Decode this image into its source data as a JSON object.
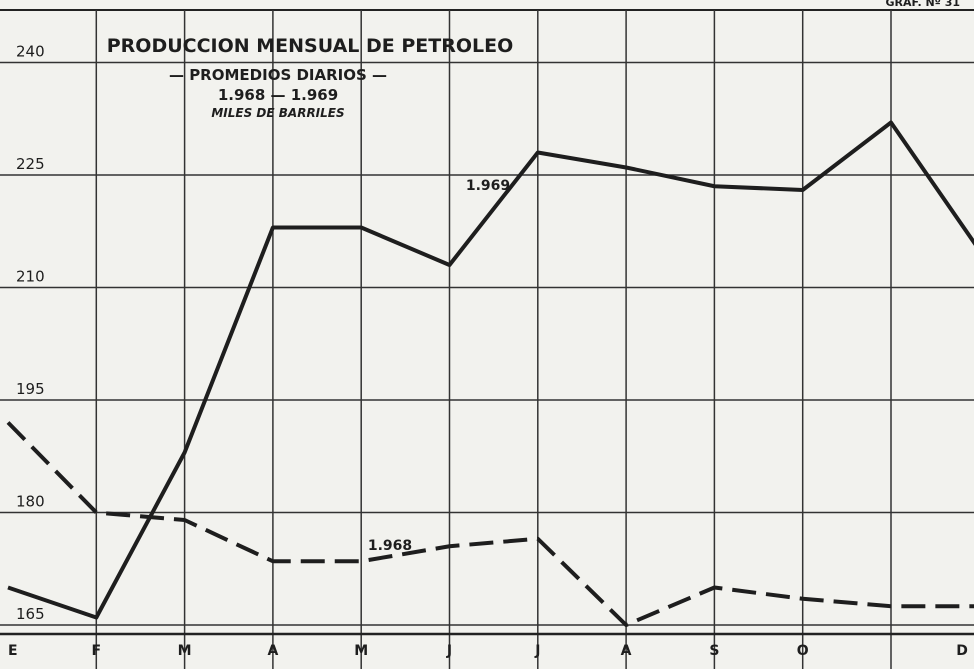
{
  "chart_data": {
    "type": "line",
    "title": "PRODUCCION MENSUAL DE PETROLEO",
    "subtitle": "— PROMEDIOS DIARIOS —",
    "subtitle2": "1.968 — 1.969",
    "unit_label": "MILES DE BARRILES",
    "figure_label": "GRAF. Nº 31",
    "categories": [
      "E",
      "F",
      "M",
      "A",
      "M",
      "J",
      "J",
      "A",
      "S",
      "O",
      null,
      "D"
    ],
    "series": [
      {
        "name": "1.969",
        "color": "#1e1e1e",
        "line_style": "solid",
        "values": [
          170,
          166,
          188,
          218,
          218,
          213,
          228,
          226,
          223.5,
          223,
          232,
          215
        ]
      },
      {
        "name": "1.968",
        "color": "#1e1e1e",
        "line_style": "dashed",
        "values": [
          192,
          180,
          179,
          173.5,
          173.5,
          175.5,
          176.5,
          165,
          170,
          168.5,
          167.5,
          167.5
        ]
      }
    ],
    "ylim": [
      163,
      247
    ],
    "yticks": [
      165,
      180,
      195,
      210,
      225,
      240
    ],
    "grid": true
  }
}
